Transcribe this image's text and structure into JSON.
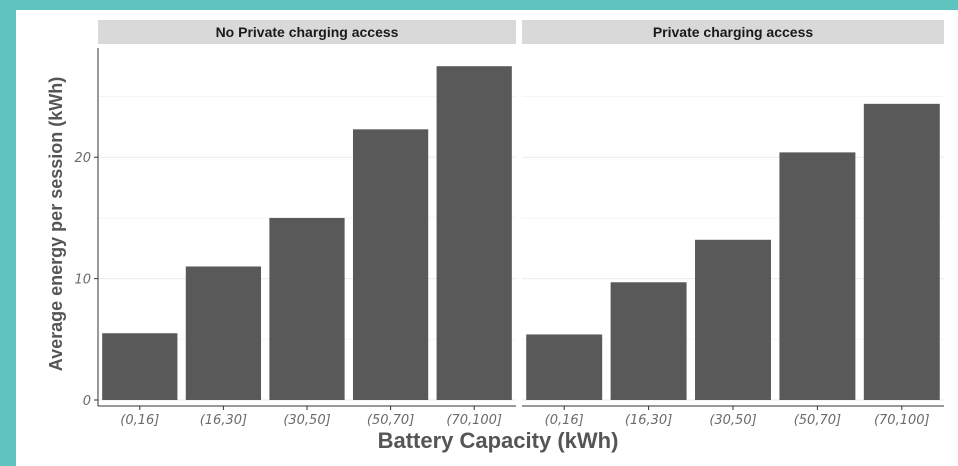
{
  "chart_data": {
    "type": "bar",
    "xlabel": "Battery Capacity (kWh)",
    "ylabel": "Average energy per session (kWh)",
    "categories": [
      "(0,16]",
      "(16,30]",
      "(30,50]",
      "(50,70]",
      "(70,100]"
    ],
    "yticks": [
      0,
      10,
      20
    ],
    "ylim": [
      0,
      29
    ],
    "grid": true,
    "colors": {
      "bar": "#595959",
      "strip": "#d9d9d9",
      "grid": "#ebebeb",
      "axis": "#333333"
    },
    "panels": [
      {
        "title": "No Private charging access",
        "values": [
          5.5,
          11.0,
          15.0,
          22.3,
          27.5
        ]
      },
      {
        "title": "Private charging access",
        "values": [
          5.4,
          9.7,
          13.2,
          20.4,
          24.4
        ]
      }
    ]
  }
}
